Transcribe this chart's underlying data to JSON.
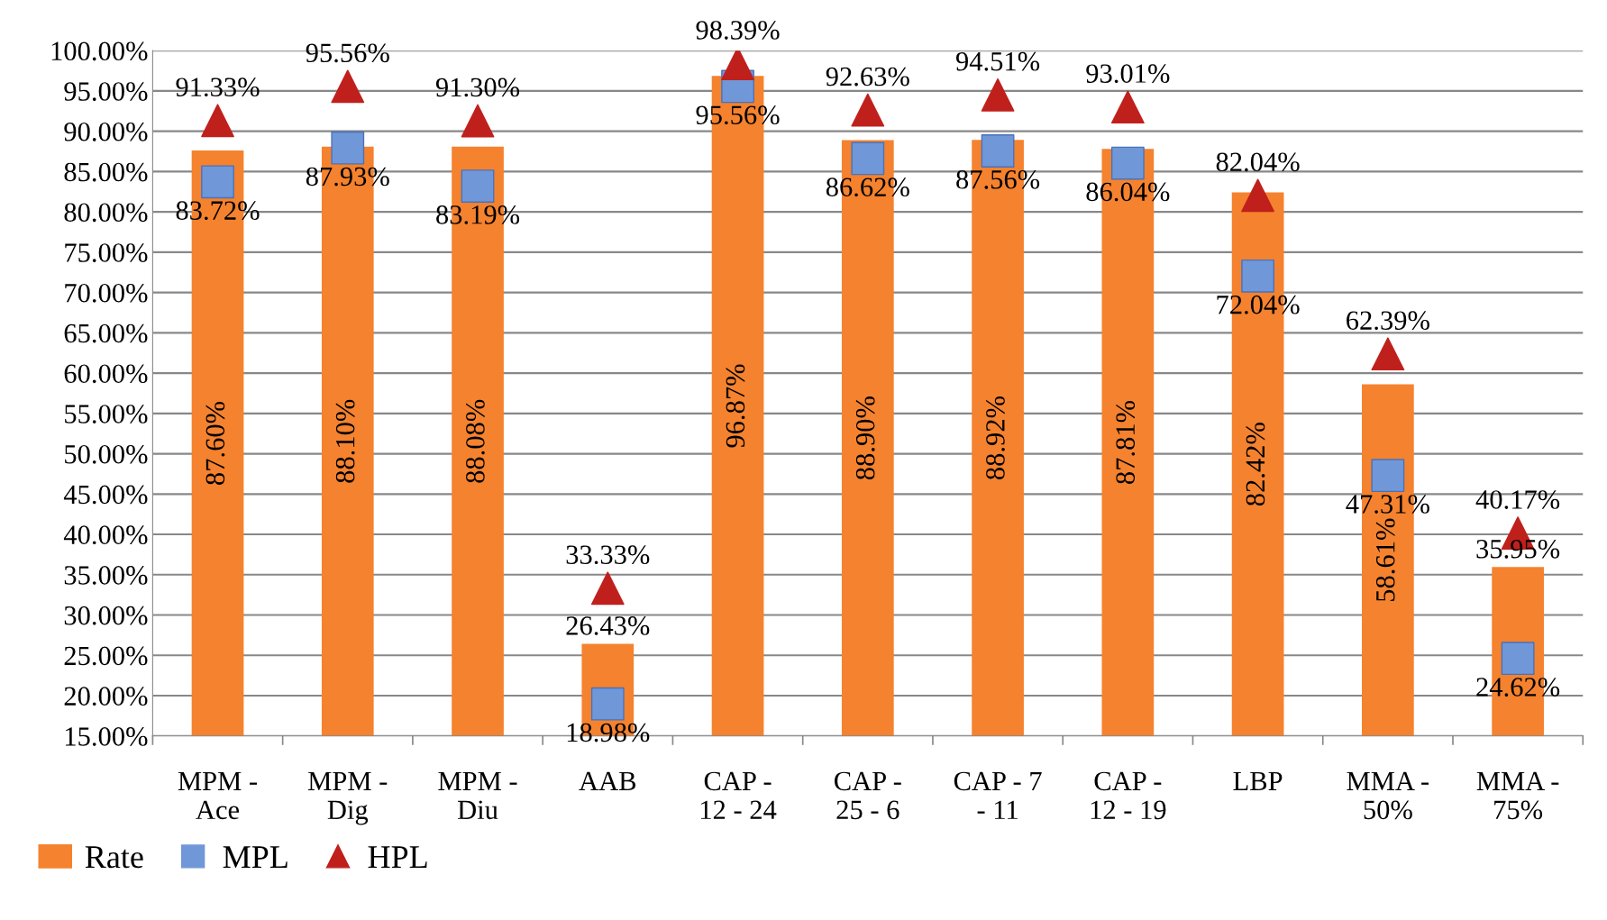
{
  "chart_data": {
    "type": "bar",
    "categories": [
      "MPM -\nAce",
      "MPM -\nDig",
      "MPM -\nDiu",
      "AAB",
      "CAP -\n12 - 24",
      "CAP -\n25 - 6",
      "CAP - 7\n- 11",
      "CAP -\n12 - 19",
      "LBP",
      "MMA -\n50%",
      "MMA -\n75%"
    ],
    "series": [
      {
        "name": "Rate",
        "color": "#f5822e",
        "values": [
          87.6,
          88.1,
          88.08,
          26.43,
          96.87,
          88.9,
          88.92,
          87.81,
          82.42,
          58.61,
          35.95
        ],
        "value_labels": [
          "87.60%",
          "88.10%",
          "88.08%",
          "26.43%",
          "96.87%",
          "88.90%",
          "88.92%",
          "87.81%",
          "82.42%",
          "58.61%",
          "35.95%"
        ]
      },
      {
        "name": "MPL",
        "type": "scatter",
        "marker": "square",
        "color": "#7097d8",
        "values": [
          83.72,
          87.93,
          83.19,
          18.98,
          95.56,
          86.62,
          87.56,
          86.04,
          72.04,
          47.31,
          24.62
        ],
        "value_labels": [
          "83.72%",
          "87.93%",
          "83.19%",
          "18.98%",
          "95.56%",
          "86.62%",
          "87.56%",
          "86.04%",
          "72.04%",
          "47.31%",
          "24.62%"
        ]
      },
      {
        "name": "HPL",
        "type": "scatter",
        "marker": "triangle",
        "color": "#c0201c",
        "values": [
          91.33,
          95.56,
          91.3,
          33.33,
          98.39,
          92.63,
          94.51,
          93.01,
          82.04,
          62.39,
          40.17
        ],
        "value_labels": [
          "91.33%",
          "95.56%",
          "91.30%",
          "33.33%",
          "98.39%",
          "92.63%",
          "94.51%",
          "93.01%",
          "82.04%",
          "62.39%",
          "40.17%"
        ]
      }
    ],
    "ylim": [
      15,
      100
    ],
    "yticks": [
      {
        "value": 15,
        "label": "15.00%"
      },
      {
        "value": 20,
        "label": "20.00%"
      },
      {
        "value": 25,
        "label": "25.00%"
      },
      {
        "value": 30,
        "label": "30.00%"
      },
      {
        "value": 35,
        "label": "35.00%"
      },
      {
        "value": 40,
        "label": "40.00%"
      },
      {
        "value": 45,
        "label": "45.00%"
      },
      {
        "value": 50,
        "label": "50.00%"
      },
      {
        "value": 55,
        "label": "55.00%"
      },
      {
        "value": 60,
        "label": "60.00%"
      },
      {
        "value": 65,
        "label": "65.00%"
      },
      {
        "value": 70,
        "label": "70.00%"
      },
      {
        "value": 75,
        "label": "75.00%"
      },
      {
        "value": 80,
        "label": "80.00%"
      },
      {
        "value": 85,
        "label": "85.00%"
      },
      {
        "value": 90,
        "label": "90.00%"
      },
      {
        "value": 95,
        "label": "95.00%"
      },
      {
        "value": 100,
        "label": "100.00%"
      }
    ],
    "grid": "y",
    "legend": "bottom left"
  }
}
